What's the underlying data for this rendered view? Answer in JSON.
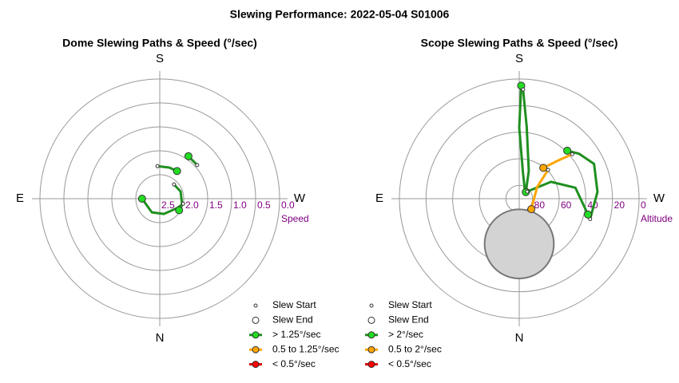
{
  "title": "Slewing Performance: 2022-05-04 S01006",
  "chart_data": [
    {
      "type": "polar",
      "title": "Dome Slewing Paths & Speed (°/sec)",
      "directions": [
        "N",
        "E",
        "S",
        "W"
      ],
      "rlabel": "Speed",
      "rlim": [
        2.5,
        0
      ],
      "rticks": [
        2.5,
        {
          "value": 2,
          "label": "2.0"
        },
        1.5,
        {
          "value": 1,
          "label": "1.0"
        },
        0.5,
        {
          "value": 0,
          "label": "0.0"
        }
      ],
      "start_label": "Slew Start",
      "end_label": "Slew End",
      "series": [
        {
          "name": "> 1.25°/sec",
          "color": "#1f8f1f",
          "marker_color": "#22dd22",
          "azimuth": [
            228,
            214,
            null,
            176,
            197,
            212,
            null,
            225,
            251,
            284,
            301,
            null,
            282,
            297,
            345,
            30,
            90
          ],
          "values": [
            1.45,
            1.43,
            null,
            1.82,
            1.82,
            1.82,
            null,
            2.08,
            2.04,
            2.02,
            2.03,
            null,
            2.0,
            2.08,
            2.17,
            2.17,
            2.13
          ]
        },
        {
          "name": "0.5 to 1.25°/sec",
          "color": "#ffa500",
          "marker_color": "#ffa500",
          "azimuth": [],
          "values": []
        },
        {
          "name": "< 0.5°/sec",
          "color": "#dd0000",
          "marker_color": "#ff0000",
          "azimuth": [],
          "values": []
        }
      ]
    },
    {
      "type": "polar",
      "title": "Scope Slewing Paths & Speed (°/sec)",
      "directions": [
        "N",
        "E",
        "S",
        "W"
      ],
      "rlabel": "Altitude",
      "rlim": [
        90,
        0
      ],
      "rticks": [
        80,
        60,
        40,
        20,
        0
      ],
      "start_label": "Slew Start",
      "end_label": "Slew End",
      "exclusion": {
        "azimuth": 0,
        "values": 56,
        "radius": 26,
        "color": "#d3d3d3"
      },
      "series": [
        {
          "name": "> 2°/sec",
          "color": "#1f8f1f",
          "marker_color": "#22dd22",
          "azimuth": [
            218,
            188,
            180,
            181,
            null,
            182,
            186,
            199,
            225,
            null,
            286,
            265,
            245,
            233,
            225,
            null,
            228,
            242,
            259,
            283
          ],
          "values": [
            83,
            70,
            36.6,
            5,
            null,
            7.8,
            36,
            68,
            83,
            null,
            34.6,
            31,
            28,
            33.8,
            39,
            null,
            82,
            63,
            47,
            37
          ]
        },
        {
          "name": "0.5 to 2°/sec",
          "color": "#ffa500",
          "marker_color": "#ffa500",
          "azimuth": [
            230,
            226,
            218,
            null,
            225,
            237,
            311
          ],
          "values": [
            38,
            48,
            60.6,
            null,
            59.4,
            74,
            78
          ]
        },
        {
          "name": "< 0.5°/sec",
          "color": "#dd0000",
          "marker_color": "#ff0000",
          "azimuth": [],
          "values": []
        }
      ]
    }
  ]
}
